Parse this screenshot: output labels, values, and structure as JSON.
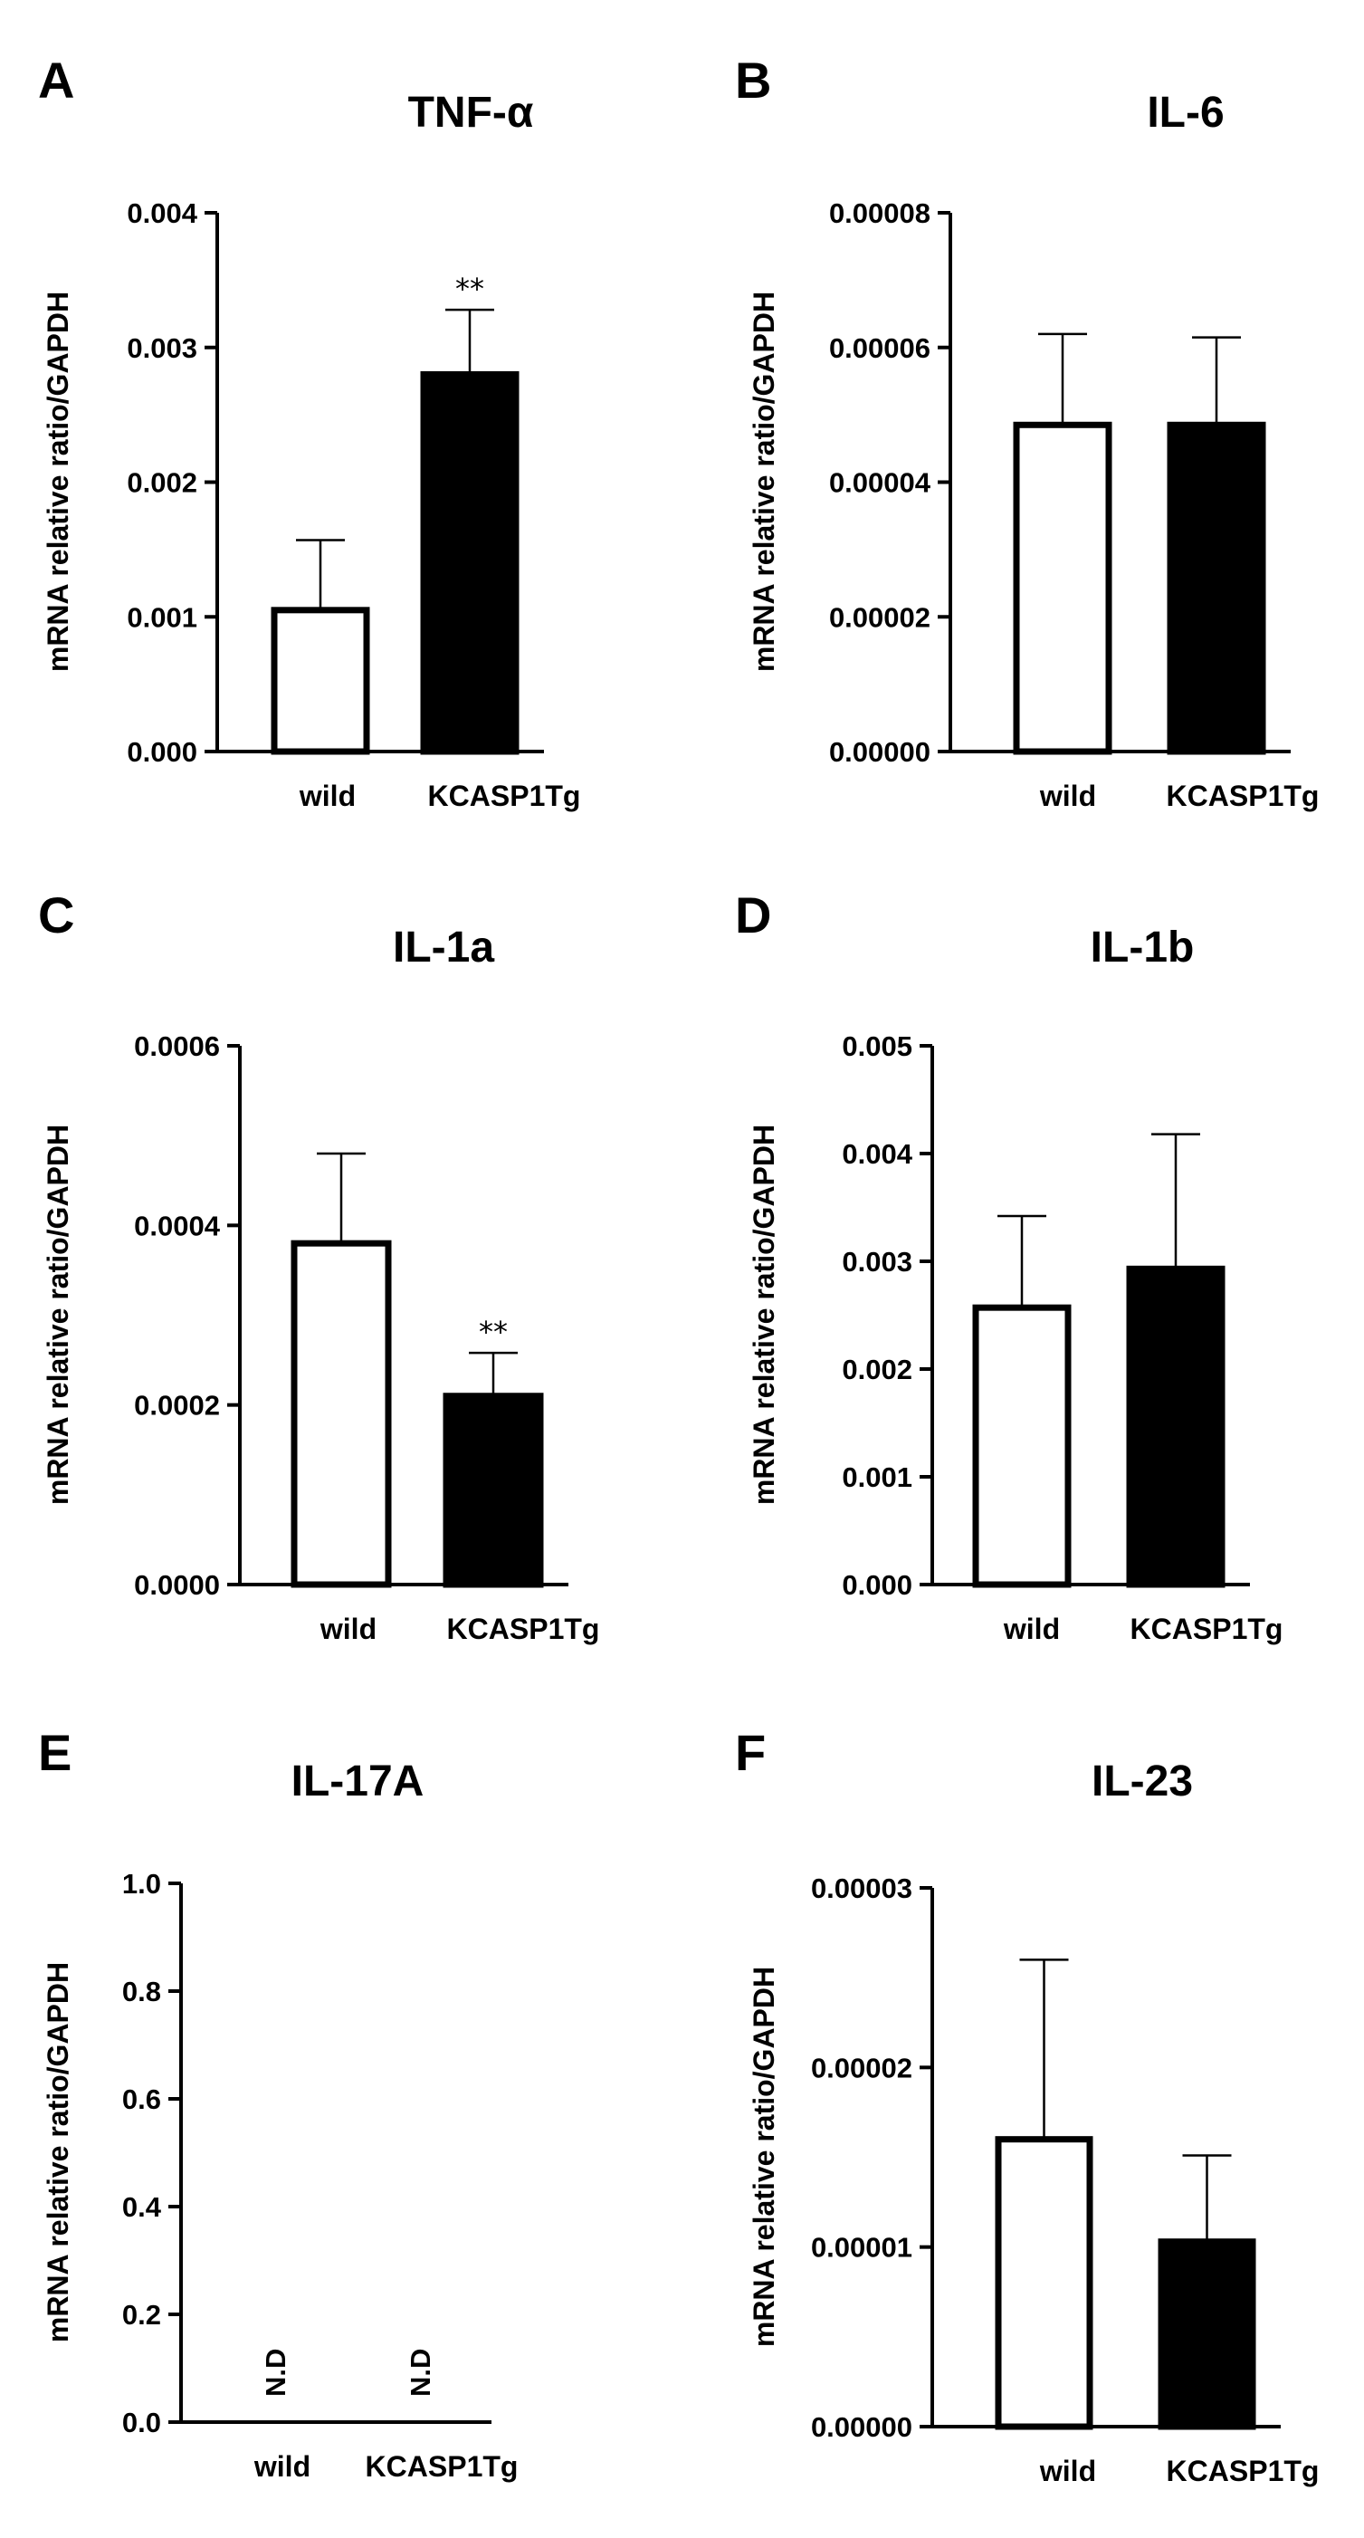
{
  "chart_data": [
    {
      "panel": "A",
      "type": "bar",
      "title": "TNF-α",
      "ylabel": "mRNA relative ratio/GAPDH",
      "categories": [
        "wild",
        "KCASP1Tg"
      ],
      "values": [
        0.00105,
        0.0028
      ],
      "errors": [
        0.00052,
        0.00048
      ],
      "significance": [
        "",
        "**"
      ],
      "ylim": [
        0,
        0.004
      ],
      "yticks": [
        "0.000",
        "0.001",
        "0.002",
        "0.003",
        "0.004"
      ],
      "bar_fills": [
        "#ffffff",
        "#000000"
      ]
    },
    {
      "panel": "B",
      "type": "bar",
      "title": "IL-6",
      "ylabel": "mRNA relative ratio/GAPDH",
      "categories": [
        "wild",
        "KCASP1Tg"
      ],
      "values": [
        4.85e-05,
        4.85e-05
      ],
      "errors": [
        1.35e-05,
        1.3e-05
      ],
      "significance": [
        "",
        ""
      ],
      "ylim": [
        0,
        8e-05
      ],
      "yticks": [
        "0.00000",
        "0.00002",
        "0.00004",
        "0.00006",
        "0.00008"
      ],
      "bar_fills": [
        "#ffffff",
        "#000000"
      ]
    },
    {
      "panel": "C",
      "type": "bar",
      "title": "IL-1a",
      "ylabel": "mRNA relative ratio/GAPDH",
      "categories": [
        "wild",
        "KCASP1Tg"
      ],
      "values": [
        0.00038,
        0.00021
      ],
      "errors": [
        0.0001,
        4.8e-05
      ],
      "significance": [
        "",
        "**"
      ],
      "ylim": [
        0,
        0.0006
      ],
      "yticks": [
        "0.0000",
        "0.0002",
        "0.0004",
        "0.0006"
      ],
      "bar_fills": [
        "#ffffff",
        "#000000"
      ]
    },
    {
      "panel": "D",
      "type": "bar",
      "title": "IL-1b",
      "ylabel": "mRNA relative ratio/GAPDH",
      "categories": [
        "wild",
        "KCASP1Tg"
      ],
      "values": [
        0.00257,
        0.00293
      ],
      "errors": [
        0.00085,
        0.00125
      ],
      "significance": [
        "",
        ""
      ],
      "ylim": [
        0,
        0.005
      ],
      "yticks": [
        "0.000",
        "0.001",
        "0.002",
        "0.003",
        "0.004",
        "0.005"
      ],
      "bar_fills": [
        "#ffffff",
        "#000000"
      ]
    },
    {
      "panel": "E",
      "type": "bar",
      "title": "IL-17A",
      "ylabel": "mRNA relative ratio/GAPDH",
      "categories": [
        "wild",
        "KCASP1Tg"
      ],
      "values": [
        null,
        null
      ],
      "errors": [
        null,
        null
      ],
      "value_labels": [
        "N.D",
        "N.D"
      ],
      "significance": [
        "",
        ""
      ],
      "ylim": [
        0,
        1.0
      ],
      "yticks": [
        "0.0",
        "0.2",
        "0.4",
        "0.6",
        "0.8",
        "1.0"
      ],
      "bar_fills": [
        "#ffffff",
        "#000000"
      ]
    },
    {
      "panel": "F",
      "type": "bar",
      "title": "IL-23",
      "ylabel": "mRNA relative ratio/GAPDH",
      "categories": [
        "wild",
        "KCASP1Tg"
      ],
      "values": [
        1.6e-05,
        1.03e-05
      ],
      "errors": [
        1e-05,
        4.8e-06
      ],
      "significance": [
        "",
        ""
      ],
      "ylim": [
        0,
        3e-05
      ],
      "yticks": [
        "0.00000",
        "0.00001",
        "0.00002",
        "0.00003"
      ],
      "bar_fills": [
        "#ffffff",
        "#000000"
      ]
    }
  ]
}
